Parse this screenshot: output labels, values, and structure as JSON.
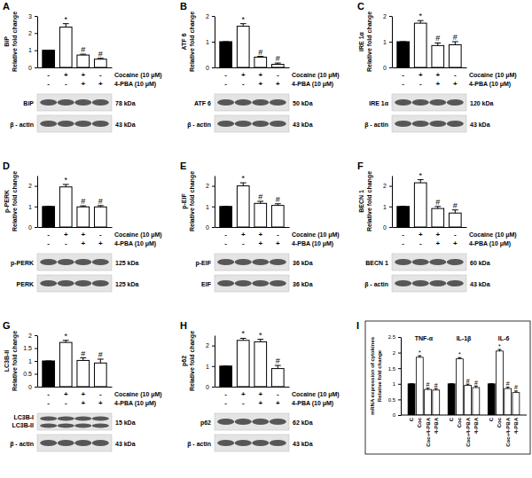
{
  "chart_data": [
    {
      "type": "bar",
      "title": "A",
      "y_label_lines": [
        "BiP",
        "Relative fold change"
      ],
      "categories": [
        null,
        null,
        null,
        null
      ],
      "values": [
        1,
        2.35,
        0.72,
        0.48
      ],
      "errors": [
        0,
        0.2,
        0.05,
        0.05
      ],
      "colors": [
        "#000000",
        "#ffffff",
        "#ffffff",
        "#ffffff"
      ],
      "annotations": [
        null,
        "*",
        "#",
        "#"
      ],
      "ylim": [
        0,
        3
      ],
      "yticks": [
        0,
        1,
        2,
        3
      ],
      "conditions": [
        {
          "label": "Cocaine (10 μM)",
          "signs": [
            "-",
            "+",
            "+",
            "-"
          ]
        },
        {
          "label": "4-PBA (10 μM)",
          "signs": [
            "-",
            "-",
            "+",
            "+"
          ]
        }
      ],
      "blots": [
        {
          "labels": [
            "BiP"
          ],
          "kda": "78 kDa"
        },
        {
          "labels": [
            "β - actin"
          ],
          "kda": "43 kDa"
        }
      ]
    },
    {
      "type": "bar",
      "title": "B",
      "y_label_lines": [
        "ATF 6",
        "Relative fold change"
      ],
      "categories": [
        null,
        null,
        null,
        null
      ],
      "values": [
        1,
        1.6,
        0.4,
        0.12
      ],
      "errors": [
        0,
        0.1,
        0.03,
        0.05
      ],
      "colors": [
        "#000000",
        "#ffffff",
        "#ffffff",
        "#ffffff"
      ],
      "annotations": [
        null,
        "*",
        "#",
        "#"
      ],
      "ylim": [
        0,
        2
      ],
      "yticks": [
        0,
        1,
        2
      ],
      "conditions": [
        {
          "label": "Cocaine (10 μM)",
          "signs": [
            "-",
            "+",
            "+",
            "-"
          ]
        },
        {
          "label": "4-PBA (10 μM)",
          "signs": [
            "-",
            "-",
            "+",
            "+"
          ]
        }
      ],
      "blots": [
        {
          "labels": [
            "ATF 6"
          ],
          "kda": "50 kDa"
        },
        {
          "labels": [
            "β - actin"
          ],
          "kda": "43 kDa"
        }
      ]
    },
    {
      "type": "bar",
      "title": "C",
      "y_label_lines": [
        "IRE 1α",
        "Relative fold change"
      ],
      "categories": [
        null,
        null,
        null,
        null
      ],
      "values": [
        1,
        1.72,
        0.85,
        0.88
      ],
      "errors": [
        0,
        0.1,
        0.1,
        0.12
      ],
      "colors": [
        "#000000",
        "#ffffff",
        "#ffffff",
        "#ffffff"
      ],
      "annotations": [
        null,
        "*",
        "#",
        "#"
      ],
      "ylim": [
        0,
        2
      ],
      "yticks": [
        0,
        1,
        2
      ],
      "conditions": [
        {
          "label": "Cocaine (10 μM)",
          "signs": [
            "-",
            "+",
            "+",
            "-"
          ]
        },
        {
          "label": "4-PBA (10 μM)",
          "signs": [
            "-",
            "-",
            "+",
            "+"
          ]
        }
      ],
      "blots": [
        {
          "labels": [
            "IRE 1α"
          ],
          "kda": "120 kDa"
        },
        {
          "labels": [
            "β - actin"
          ],
          "kda": "43 kDa"
        }
      ]
    },
    {
      "type": "bar",
      "title": "D",
      "y_label_lines": [
        "p-PERK",
        "Relative fold change"
      ],
      "categories": [
        null,
        null,
        null,
        null
      ],
      "values": [
        1,
        1.95,
        0.98,
        0.98
      ],
      "errors": [
        0,
        0.12,
        0.05,
        0.06
      ],
      "colors": [
        "#000000",
        "#ffffff",
        "#ffffff",
        "#ffffff"
      ],
      "annotations": [
        null,
        "*",
        "#",
        "#"
      ],
      "ylim": [
        0,
        2.5
      ],
      "yticks": [
        0,
        1,
        2
      ],
      "conditions": [
        {
          "label": "Cocaine (10 μM)",
          "signs": [
            "-",
            "+",
            "+",
            "-"
          ]
        },
        {
          "label": "4-PBA (10 μM)",
          "signs": [
            "-",
            "-",
            "+",
            "+"
          ]
        }
      ],
      "blots": [
        {
          "labels": [
            "p-PERK"
          ],
          "kda": "125 kDa"
        },
        {
          "labels": [
            "PERK"
          ],
          "kda": "125 kDa"
        }
      ]
    },
    {
      "type": "bar",
      "title": "E",
      "y_label_lines": [
        "p-EIF",
        "Relative fold change"
      ],
      "categories": [
        null,
        null,
        null,
        null
      ],
      "values": [
        1,
        2.0,
        1.15,
        1.05
      ],
      "errors": [
        0,
        0.15,
        0.1,
        0.08
      ],
      "colors": [
        "#000000",
        "#ffffff",
        "#ffffff",
        "#ffffff"
      ],
      "annotations": [
        null,
        "*",
        "#",
        "#"
      ],
      "ylim": [
        0,
        2.5
      ],
      "yticks": [
        0,
        1,
        2
      ],
      "conditions": [
        {
          "label": "Cocaine (10 μM)",
          "signs": [
            "-",
            "+",
            "+",
            "-"
          ]
        },
        {
          "label": "4-PBA (10 μM)",
          "signs": [
            "-",
            "-",
            "+",
            "+"
          ]
        }
      ],
      "blots": [
        {
          "labels": [
            "p-EIF"
          ],
          "kda": "36 kDa"
        },
        {
          "labels": [
            "EIF"
          ],
          "kda": "36 kDa"
        }
      ]
    },
    {
      "type": "bar",
      "title": "F",
      "y_label_lines": [
        "BECN 1",
        "Relative fold change"
      ],
      "categories": [
        null,
        null,
        null,
        null
      ],
      "values": [
        1,
        2.15,
        0.9,
        0.68
      ],
      "errors": [
        0,
        0.15,
        0.1,
        0.15
      ],
      "colors": [
        "#000000",
        "#ffffff",
        "#ffffff",
        "#ffffff"
      ],
      "annotations": [
        null,
        "*",
        "#",
        "#"
      ],
      "ylim": [
        0,
        2.5
      ],
      "yticks": [
        0,
        1,
        2
      ],
      "conditions": [
        {
          "label": "Cocaine (10 μM)",
          "signs": [
            "-",
            "+",
            "+",
            "-"
          ]
        },
        {
          "label": "4-PBA (10 μM)",
          "signs": [
            "-",
            "-",
            "+",
            "+"
          ]
        }
      ],
      "blots": [
        {
          "labels": [
            "BECN 1"
          ],
          "kda": "60 kDa"
        },
        {
          "labels": [
            "β - actin"
          ],
          "kda": "43 kDa"
        }
      ]
    },
    {
      "type": "bar",
      "title": "G",
      "y_label_lines": [
        "LC3B-II",
        "Relative fold change"
      ],
      "categories": [
        null,
        null,
        null,
        null
      ],
      "values": [
        1,
        1.72,
        1.02,
        0.92
      ],
      "errors": [
        0,
        0.08,
        0.1,
        0.15
      ],
      "colors": [
        "#000000",
        "#ffffff",
        "#ffffff",
        "#ffffff"
      ],
      "annotations": [
        null,
        "*",
        "#",
        "#"
      ],
      "ylim": [
        0,
        2
      ],
      "yticks": [
        0,
        0.5,
        1,
        1.5,
        2
      ],
      "conditions": [
        {
          "label": "Cocaine (10 μM)",
          "signs": [
            "-",
            "+",
            "+",
            "-"
          ]
        },
        {
          "label": "4-PBA (10 μM)",
          "signs": [
            "-",
            "-",
            "+",
            "+"
          ]
        }
      ],
      "blots": [
        {
          "labels": [
            "LC3B-I",
            "LC3B-II"
          ],
          "kda": "15 kDa"
        },
        {
          "labels": [
            "β - actin"
          ],
          "kda": "43 kDa"
        }
      ]
    },
    {
      "type": "bar",
      "title": "H",
      "y_label_lines": [
        "p62",
        "Relative fold change"
      ],
      "categories": [
        null,
        null,
        null,
        null
      ],
      "values": [
        1,
        2.25,
        2.18,
        0.88
      ],
      "errors": [
        0,
        0.1,
        0.12,
        0.15
      ],
      "colors": [
        "#000000",
        "#ffffff",
        "#ffffff",
        "#ffffff"
      ],
      "annotations": [
        null,
        "*",
        "*",
        "#"
      ],
      "ylim": [
        0,
        2.5
      ],
      "yticks": [
        0,
        1,
        2
      ],
      "conditions": [
        {
          "label": "Cocaine (10 μM)",
          "signs": [
            "-",
            "+",
            "+",
            "-"
          ]
        },
        {
          "label": "4-PBA (10 μM)",
          "signs": [
            "-",
            "-",
            "+",
            "+"
          ]
        }
      ],
      "blots": [
        {
          "labels": [
            "p62"
          ],
          "kda": "62 kDa"
        },
        {
          "labels": [
            "β - actin"
          ],
          "kda": "43 kDa"
        }
      ]
    },
    {
      "type": "bar",
      "title": "I",
      "y_label_lines": [
        "mRNA expression of cytokines",
        "Relative fold change"
      ],
      "categories": [
        "TNF-α",
        "IL-1β",
        "IL-6"
      ],
      "series": [
        {
          "name": "C",
          "color": "#000000",
          "values": [
            1,
            1,
            1
          ],
          "errors": [
            0,
            0,
            0
          ],
          "annotations": [
            null,
            null,
            null
          ]
        },
        {
          "name": "Coc",
          "color": "#ffffff",
          "values": [
            1.85,
            1.8,
            2.05
          ],
          "errors": [
            0.05,
            0.04,
            0.05
          ],
          "annotations": [
            "*",
            "*",
            "*"
          ]
        },
        {
          "name": "Coc+4-PBA",
          "color": "#ffffff",
          "values": [
            0.82,
            0.95,
            0.85
          ],
          "errors": [
            0.04,
            0.04,
            0.04
          ],
          "annotations": [
            "#",
            "#",
            "#"
          ]
        },
        {
          "name": "4-PBA",
          "color": "#ffffff",
          "values": [
            0.8,
            0.88,
            0.72
          ],
          "errors": [
            0.05,
            0.05,
            0.05
          ],
          "annotations": [
            "#",
            "#",
            "#"
          ]
        }
      ],
      "ylim": [
        0,
        2.5
      ],
      "yticks": [
        0,
        0.5,
        1,
        1.5,
        2,
        2.5
      ]
    }
  ]
}
